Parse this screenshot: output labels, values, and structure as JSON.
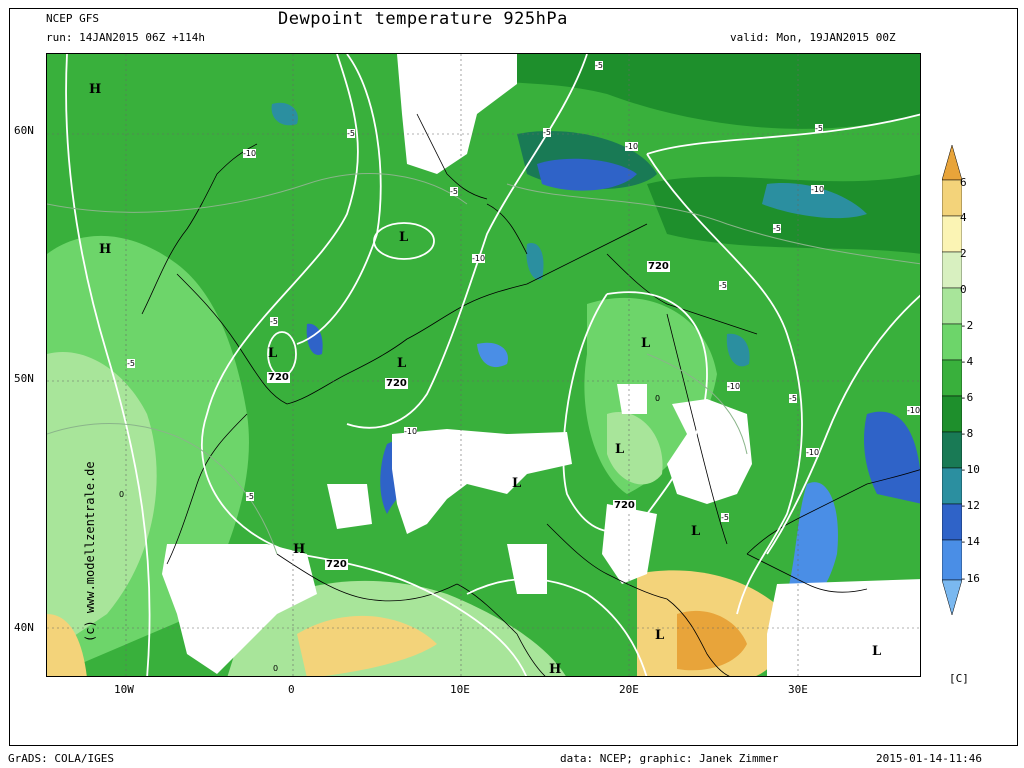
{
  "header": {
    "model": "NCEP GFS",
    "run": "run: 14JAN2015 06Z +114h",
    "title": "Dewpoint temperature 925hPa",
    "valid": "valid: Mon, 19JAN2015 00Z"
  },
  "axes": {
    "lat_labels": [
      "60N",
      "50N",
      "40N"
    ],
    "lon_labels": [
      "10W",
      "0",
      "10E",
      "20E",
      "30E"
    ]
  },
  "colorbar": {
    "labels": [
      "6",
      "4",
      "2",
      "0",
      "-2",
      "-4",
      "-6",
      "-8",
      "-10",
      "-12",
      "-14",
      "-16"
    ],
    "unit": "[C]",
    "colors": [
      "#e8a43a",
      "#f3d37a",
      "#fbf4b4",
      "#d8f0c0",
      "#a8e59a",
      "#6dd56a",
      "#39b03c",
      "#1e8f2c",
      "#197a55",
      "#2b8fa0",
      "#2f63c8",
      "#4a8ee6",
      "#7ab8f0"
    ]
  },
  "map_labels": {
    "highs": [
      "H",
      "H",
      "H",
      "H"
    ],
    "lows": [
      "L",
      "L",
      "L",
      "L",
      "L",
      "L",
      "L",
      "L",
      "L"
    ],
    "contours": [
      "720",
      "720",
      "720",
      "720",
      "720"
    ],
    "dewpoint_values": [
      "-5",
      "-5",
      "-5",
      "-5",
      "-5",
      "-5",
      "-5",
      "-5",
      "-5",
      "-10",
      "-10",
      "-10",
      "-10",
      "-10",
      "-10",
      "-10",
      "-10",
      "-5",
      "-5",
      "-5",
      "-5",
      "0",
      "0",
      "0"
    ]
  },
  "footer": {
    "left": "GrADS: COLA/IGES",
    "credit": "data: NCEP; graphic: Janek Zimmer",
    "timestamp": "2015-01-14-11:46",
    "side_url": "(c) www.modellzentrale.de"
  }
}
